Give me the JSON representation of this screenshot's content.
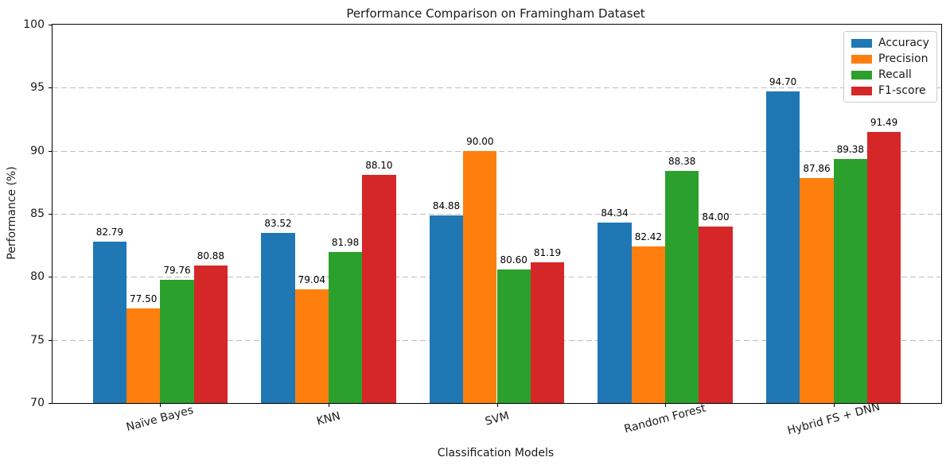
{
  "chart_data": {
    "type": "bar",
    "title": "Performance Comparison on Framingham Dataset",
    "xlabel": "Classification Models",
    "ylabel": "Performance (%)",
    "categories": [
      "Naïve Bayes",
      "KNN",
      "SVM",
      "Random Forest",
      "Hybrid FS + DNN"
    ],
    "series": [
      {
        "name": "Accuracy",
        "color": "#1f77b4",
        "values": [
          82.79,
          83.52,
          84.88,
          84.34,
          94.7
        ]
      },
      {
        "name": "Precision",
        "color": "#ff7f0e",
        "values": [
          77.5,
          79.04,
          90.0,
          82.42,
          87.86
        ]
      },
      {
        "name": "Recall",
        "color": "#2ca02c",
        "values": [
          79.76,
          81.98,
          80.6,
          88.38,
          89.38
        ]
      },
      {
        "name": "F1-score",
        "color": "#d62728",
        "values": [
          80.88,
          88.1,
          81.19,
          84.0,
          91.49
        ]
      }
    ],
    "ylim": [
      70,
      100
    ],
    "yticks": [
      70,
      75,
      80,
      85,
      90,
      95,
      100
    ],
    "xtick_rotation_deg": 15,
    "bar_width_units": 0.2,
    "grid": "horizontal-dashed",
    "legend_position": "upper-right",
    "bar_value_labels": true,
    "value_label_decimals": 2
  }
}
